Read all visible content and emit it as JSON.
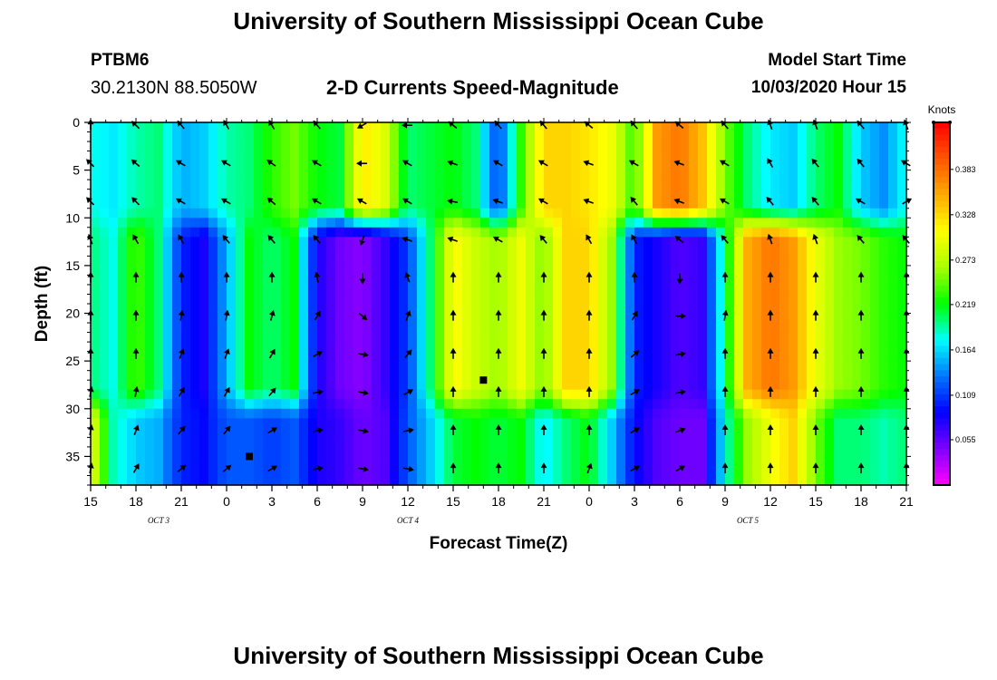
{
  "header": {
    "title_top": "University of Southern Mississippi Ocean Cube",
    "title_bottom": "University of Southern Mississippi Ocean Cube",
    "station_id": "PTBM6",
    "station_coords": "30.2130N 88.5050W",
    "chart_title": "2-D Currents Speed-Magnitude",
    "model_label": "Model Start Time",
    "model_time": "10/03/2020 Hour 15"
  },
  "chart_data": {
    "type": "heatmap",
    "title": "2-D Currents Speed-Magnitude",
    "xlabel": "Forecast Time(Z)",
    "ylabel": "Depth (ft)",
    "x_ticks": [
      "15",
      "18",
      "21",
      "0",
      "3",
      "6",
      "9",
      "12",
      "15",
      "18",
      "21",
      "0",
      "3",
      "6",
      "9",
      "12",
      "15",
      "18",
      "21"
    ],
    "x_date_labels": [
      {
        "label": "OCT 3",
        "tick_index": 1.5
      },
      {
        "label": "OCT 4",
        "tick_index": 7
      },
      {
        "label": "OCT 5",
        "tick_index": 14.5
      }
    ],
    "xlim_hours": [
      0,
      54
    ],
    "y_ticks": [
      0,
      5,
      10,
      15,
      20,
      25,
      30,
      35
    ],
    "ylim": [
      0,
      38
    ],
    "y_inverted": true,
    "colorbar": {
      "units": "Knots",
      "ticks": [
        "0.383",
        "0.328",
        "0.273",
        "0.219",
        "0.164",
        "0.109",
        "0.055"
      ],
      "range": [
        0,
        0.44
      ],
      "colors": [
        "#ff00ff",
        "#7f00ff",
        "#0000ff",
        "#0077ff",
        "#00ffff",
        "#00ff00",
        "#aaff00",
        "#ffff00",
        "#ffaa00",
        "#ff5500",
        "#ff0000"
      ]
    },
    "columns": [
      {
        "hour": 0,
        "top": 0.18,
        "mid": 0.2,
        "bot": 0.3
      },
      {
        "hour": 1.5,
        "top": 0.17,
        "mid": 0.18,
        "bot": 0.19
      },
      {
        "hour": 3,
        "top": 0.19,
        "mid": 0.24,
        "bot": 0.16
      },
      {
        "hour": 4.5,
        "top": 0.2,
        "mid": 0.2,
        "bot": 0.15
      },
      {
        "hour": 6,
        "top": 0.15,
        "mid": 0.1,
        "bot": 0.1
      },
      {
        "hour": 7.5,
        "top": 0.16,
        "mid": 0.08,
        "bot": 0.09
      },
      {
        "hour": 9,
        "top": 0.19,
        "mid": 0.15,
        "bot": 0.12
      },
      {
        "hour": 10.5,
        "top": 0.2,
        "mid": 0.22,
        "bot": 0.12
      },
      {
        "hour": 12,
        "top": 0.23,
        "mid": 0.2,
        "bot": 0.11
      },
      {
        "hour": 13.5,
        "top": 0.25,
        "mid": 0.22,
        "bot": 0.12
      },
      {
        "hour": 15,
        "top": 0.22,
        "mid": 0.08,
        "bot": 0.08
      },
      {
        "hour": 16.5,
        "top": 0.21,
        "mid": 0.05,
        "bot": 0.07
      },
      {
        "hour": 18,
        "top": 0.32,
        "mid": 0.04,
        "bot": 0.05
      },
      {
        "hour": 19.5,
        "top": 0.29,
        "mid": 0.07,
        "bot": 0.06
      },
      {
        "hour": 21,
        "top": 0.2,
        "mid": 0.11,
        "bot": 0.12
      },
      {
        "hour": 22.5,
        "top": 0.21,
        "mid": 0.2,
        "bot": 0.16
      },
      {
        "hour": 24,
        "top": 0.22,
        "mid": 0.31,
        "bot": 0.21
      },
      {
        "hour": 25.5,
        "top": 0.2,
        "mid": 0.28,
        "bot": 0.22
      },
      {
        "hour": 27,
        "top": 0.11,
        "mid": 0.26,
        "bot": 0.21
      },
      {
        "hour": 28.5,
        "top": 0.23,
        "mid": 0.3,
        "bot": 0.22
      },
      {
        "hour": 30,
        "top": 0.33,
        "mid": 0.25,
        "bot": 0.17
      },
      {
        "hour": 31.5,
        "top": 0.33,
        "mid": 0.33,
        "bot": 0.2
      },
      {
        "hour": 33,
        "top": 0.32,
        "mid": 0.33,
        "bot": 0.22
      },
      {
        "hour": 34.5,
        "top": 0.3,
        "mid": 0.26,
        "bot": 0.16
      },
      {
        "hour": 36,
        "top": 0.23,
        "mid": 0.1,
        "bot": 0.09
      },
      {
        "hour": 37.5,
        "top": 0.36,
        "mid": 0.08,
        "bot": 0.06
      },
      {
        "hour": 39,
        "top": 0.38,
        "mid": 0.06,
        "bot": 0.05
      },
      {
        "hour": 40.5,
        "top": 0.34,
        "mid": 0.07,
        "bot": 0.05
      },
      {
        "hour": 42,
        "top": 0.25,
        "mid": 0.2,
        "bot": 0.18
      },
      {
        "hour": 43.5,
        "top": 0.2,
        "mid": 0.35,
        "bot": 0.26
      },
      {
        "hour": 45,
        "top": 0.17,
        "mid": 0.38,
        "bot": 0.3
      },
      {
        "hour": 46.5,
        "top": 0.16,
        "mid": 0.36,
        "bot": 0.33
      },
      {
        "hour": 48,
        "top": 0.2,
        "mid": 0.3,
        "bot": 0.25
      },
      {
        "hour": 49.5,
        "top": 0.22,
        "mid": 0.26,
        "bot": 0.2
      },
      {
        "hour": 51,
        "top": 0.16,
        "mid": 0.25,
        "bot": 0.2
      },
      {
        "hour": 52.5,
        "top": 0.14,
        "mid": 0.23,
        "bot": 0.19
      },
      {
        "hour": 54,
        "top": 0.18,
        "mid": 0.22,
        "bot": 0.2
      }
    ],
    "vector_depths": [
      0,
      4,
      8,
      12,
      16,
      20,
      24,
      28,
      32,
      36
    ],
    "vector_directions_by_time": [
      {
        "hour": 0,
        "dirs": [
          0,
          -45,
          -45,
          -20,
          0,
          0,
          0,
          10,
          10,
          10
        ]
      },
      {
        "hour": 3,
        "dirs": [
          -45,
          -50,
          -45,
          -30,
          0,
          0,
          0,
          10,
          20,
          30
        ]
      },
      {
        "hour": 6,
        "dirs": [
          -40,
          -60,
          -60,
          -30,
          0,
          10,
          20,
          30,
          40,
          50
        ]
      },
      {
        "hour": 9,
        "dirs": [
          -30,
          -60,
          -60,
          -40,
          0,
          10,
          20,
          30,
          40,
          50
        ]
      },
      {
        "hour": 12,
        "dirs": [
          -30,
          -55,
          -50,
          -40,
          0,
          15,
          30,
          40,
          60,
          60
        ]
      },
      {
        "hour": 15,
        "dirs": [
          -40,
          -60,
          -60,
          -40,
          -10,
          30,
          60,
          80,
          80,
          80
        ]
      },
      {
        "hour": 18,
        "dirs": [
          -120,
          -90,
          -60,
          -160,
          180,
          130,
          100,
          100,
          100,
          100
        ]
      },
      {
        "hour": 21,
        "dirs": [
          -90,
          -60,
          -60,
          -70,
          -20,
          20,
          40,
          60,
          80,
          100
        ]
      },
      {
        "hour": 24,
        "dirs": [
          -50,
          -70,
          -80,
          -70,
          0,
          0,
          0,
          0,
          0,
          0
        ]
      },
      {
        "hour": 27,
        "dirs": [
          -40,
          -60,
          -70,
          -60,
          0,
          0,
          0,
          0,
          0,
          0
        ]
      },
      {
        "hour": 30,
        "dirs": [
          -40,
          -60,
          -60,
          -40,
          0,
          0,
          0,
          0,
          0,
          0
        ]
      },
      {
        "hour": 33,
        "dirs": [
          -50,
          -70,
          -70,
          -30,
          0,
          0,
          0,
          0,
          0,
          20
        ]
      },
      {
        "hour": 36,
        "dirs": [
          -40,
          -60,
          -40,
          -30,
          0,
          30,
          50,
          60,
          60,
          60
        ]
      },
      {
        "hour": 39,
        "dirs": [
          -50,
          -70,
          -70,
          -50,
          180,
          90,
          80,
          80,
          70,
          60
        ]
      },
      {
        "hour": 42,
        "dirs": [
          -40,
          -60,
          -60,
          -40,
          0,
          10,
          0,
          0,
          0,
          0
        ]
      },
      {
        "hour": 45,
        "dirs": [
          -20,
          -30,
          -40,
          -20,
          0,
          0,
          0,
          0,
          0,
          0
        ]
      },
      {
        "hour": 48,
        "dirs": [
          -20,
          -40,
          -40,
          -20,
          0,
          0,
          0,
          0,
          0,
          0
        ]
      },
      {
        "hour": 51,
        "dirs": [
          -40,
          -40,
          -60,
          -40,
          0,
          0,
          0,
          0,
          0,
          0
        ]
      },
      {
        "hour": 54,
        "dirs": [
          -20,
          -60,
          60,
          -40,
          0,
          0,
          0,
          0,
          0,
          0
        ]
      }
    ],
    "markers": [
      {
        "hour": 26,
        "depth": 27
      },
      {
        "hour": 10.5,
        "depth": 35
      }
    ]
  }
}
